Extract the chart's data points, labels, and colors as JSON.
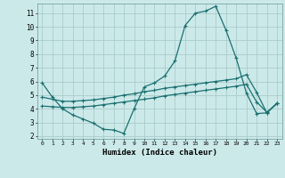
{
  "xlabel": "Humidex (Indice chaleur)",
  "bg_color": "#cce9e9",
  "grid_color": "#aacccc",
  "line_color": "#1a7070",
  "xlim": [
    -0.5,
    23.5
  ],
  "ylim": [
    1.8,
    11.7
  ],
  "xticks": [
    0,
    1,
    2,
    3,
    4,
    5,
    6,
    7,
    8,
    9,
    10,
    11,
    12,
    13,
    14,
    15,
    16,
    17,
    18,
    19,
    20,
    21,
    22,
    23
  ],
  "yticks": [
    2,
    3,
    4,
    5,
    6,
    7,
    8,
    9,
    10,
    11
  ],
  "line1_x": [
    0,
    1,
    2,
    3,
    4,
    5,
    6,
    7,
    8,
    9,
    10,
    11,
    12,
    13,
    14,
    15,
    16,
    17,
    18,
    19,
    20,
    21,
    22,
    23
  ],
  "line1_y": [
    5.9,
    4.85,
    4.0,
    3.55,
    3.25,
    2.95,
    2.5,
    2.45,
    2.2,
    4.0,
    5.6,
    5.9,
    6.4,
    7.5,
    10.1,
    11.0,
    11.15,
    11.5,
    9.75,
    7.7,
    5.15,
    3.65,
    3.7,
    4.4
  ],
  "line2_x": [
    0,
    1,
    2,
    3,
    4,
    5,
    6,
    7,
    8,
    9,
    10,
    11,
    12,
    13,
    14,
    15,
    16,
    17,
    18,
    19,
    20,
    21,
    22,
    23
  ],
  "line2_y": [
    4.85,
    4.7,
    4.55,
    4.55,
    4.6,
    4.65,
    4.75,
    4.85,
    5.0,
    5.1,
    5.25,
    5.35,
    5.5,
    5.6,
    5.7,
    5.8,
    5.9,
    6.0,
    6.1,
    6.2,
    6.5,
    5.2,
    3.7,
    4.4
  ],
  "line3_x": [
    0,
    1,
    2,
    3,
    4,
    5,
    6,
    7,
    8,
    9,
    10,
    11,
    12,
    13,
    14,
    15,
    16,
    17,
    18,
    19,
    20,
    21,
    22,
    23
  ],
  "line3_y": [
    4.2,
    4.15,
    4.1,
    4.1,
    4.15,
    4.2,
    4.3,
    4.4,
    4.5,
    4.6,
    4.7,
    4.8,
    4.95,
    5.05,
    5.15,
    5.25,
    5.35,
    5.45,
    5.55,
    5.65,
    5.8,
    4.5,
    3.75,
    4.4
  ]
}
